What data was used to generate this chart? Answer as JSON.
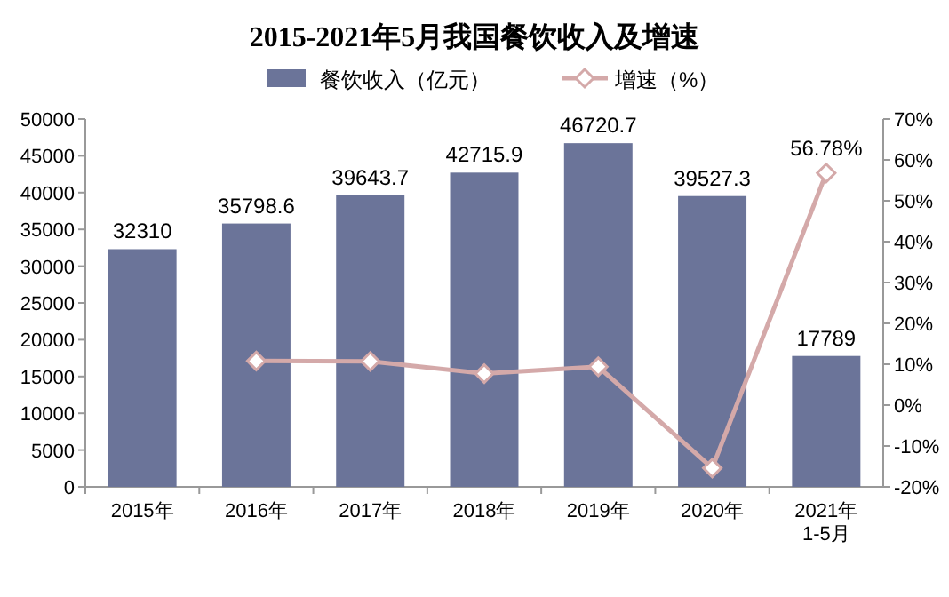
{
  "chart_data": {
    "type": "bar",
    "title": "2015-2021年5月我国餐饮收入及增速",
    "categories": [
      "2015年",
      "2016年",
      "2017年",
      "2018年",
      "2019年",
      "2020年",
      "2021年\n1-5月"
    ],
    "series": [
      {
        "name": "餐饮收入（亿元）",
        "color": "#6b7499",
        "values": [
          32310,
          35798.6,
          39643.7,
          42715.9,
          46720.7,
          39527.3,
          17789
        ],
        "data_labels": true
      },
      {
        "name": "增速（%）",
        "type": "line",
        "axis": "y2",
        "color": "#d4a9a9",
        "marker": "diamond",
        "values": [
          null,
          10.8,
          10.7,
          7.7,
          9.4,
          -15.4,
          56.78
        ],
        "value_labels": [
          null,
          null,
          null,
          null,
          null,
          null,
          "56.78%"
        ]
      }
    ],
    "ylim": [
      0,
      50000
    ],
    "yticks": [
      0,
      5000,
      10000,
      15000,
      20000,
      25000,
      30000,
      35000,
      40000,
      45000,
      50000
    ],
    "y2lim": [
      -20,
      70
    ],
    "y2ticks": [
      {
        "value": -20,
        "label": "-20%"
      },
      {
        "value": -10,
        "label": "-10%"
      },
      {
        "value": 0,
        "label": "0%"
      },
      {
        "value": 10,
        "label": "10%"
      },
      {
        "value": 20,
        "label": "20%"
      },
      {
        "value": 30,
        "label": "30%"
      },
      {
        "value": 40,
        "label": "40%"
      },
      {
        "value": 50,
        "label": "50%"
      },
      {
        "value": 60,
        "label": "60%"
      },
      {
        "value": 70,
        "label": "70%"
      }
    ],
    "legend": "top",
    "grid": false
  }
}
